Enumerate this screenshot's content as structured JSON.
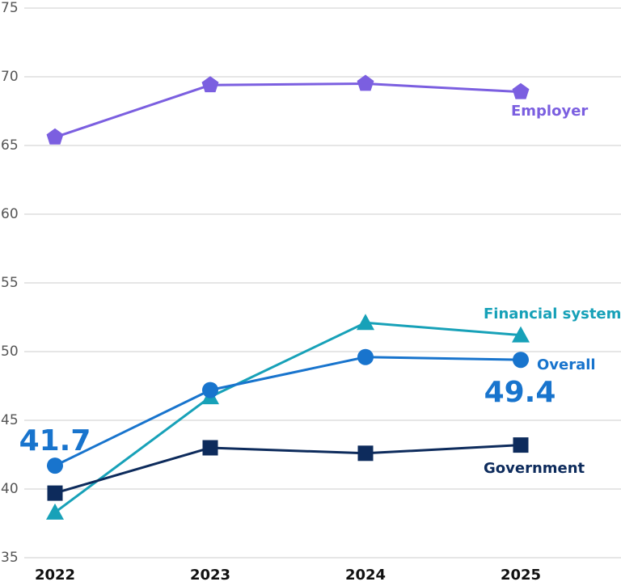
{
  "chart_data": {
    "type": "line",
    "x": [
      "2022",
      "2023",
      "2024",
      "2025"
    ],
    "ylim": [
      35,
      75
    ],
    "yticks": [
      35,
      40,
      45,
      50,
      55,
      60,
      65,
      70,
      75
    ],
    "grid": true,
    "series": [
      {
        "name": "Employer",
        "color": "#7b5fe0",
        "marker": "pentagon",
        "values": [
          65.6,
          69.4,
          69.5,
          68.9
        ]
      },
      {
        "name": "Financial system",
        "color": "#17a1b8",
        "marker": "triangle",
        "values": [
          38.3,
          46.7,
          52.1,
          51.2
        ]
      },
      {
        "name": "Overall",
        "color": "#1874cd",
        "marker": "circle",
        "values": [
          41.7,
          47.2,
          49.6,
          49.4
        ]
      },
      {
        "name": "Government",
        "color": "#0d2b5c",
        "marker": "square",
        "values": [
          39.7,
          43.0,
          42.6,
          43.2
        ]
      }
    ]
  }
}
